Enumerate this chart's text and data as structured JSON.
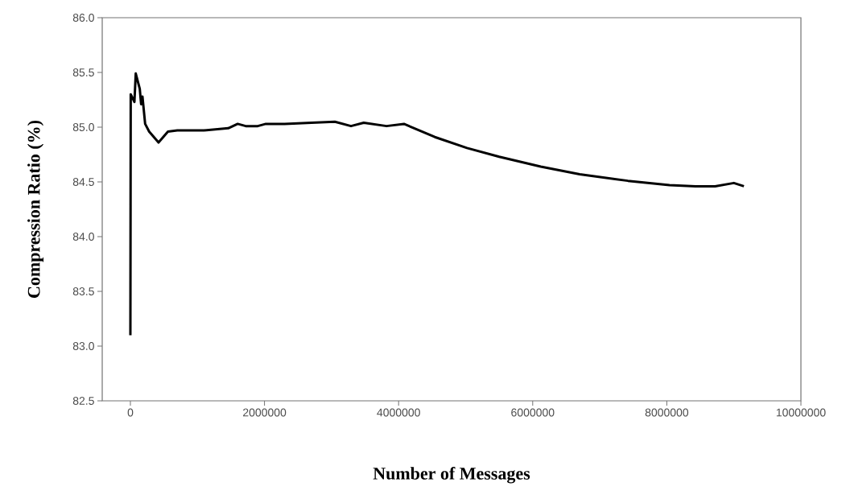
{
  "chart_data": {
    "type": "line",
    "xlabel": "Number of Messages",
    "ylabel": "Compression Ratio (%)",
    "xlim": [
      -420000,
      10000000
    ],
    "ylim": [
      82.5,
      86.0
    ],
    "xticks": [
      0,
      2000000,
      4000000,
      6000000,
      8000000,
      10000000
    ],
    "yticks": [
      {
        "value": 82.5,
        "label": "82.5"
      },
      {
        "value": 83.0,
        "label": "83.0"
      },
      {
        "value": 83.5,
        "label": "83.5"
      },
      {
        "value": 84.0,
        "label": "84.0"
      },
      {
        "value": 84.5,
        "label": "84.5"
      },
      {
        "value": 85.0,
        "label": "85.0"
      },
      {
        "value": 85.5,
        "label": "85.5"
      },
      {
        "value": 86.0,
        "label": "86.0"
      }
    ],
    "x": [
      0,
      5000,
      60000,
      80000,
      140000,
      160000,
      180000,
      220000,
      280000,
      420000,
      560000,
      700000,
      1100000,
      1460000,
      1600000,
      1720000,
      1900000,
      2020000,
      2300000,
      2700000,
      3050000,
      3290000,
      3480000,
      3820000,
      4080000,
      4540000,
      5020000,
      5500000,
      6120000,
      6700000,
      7420000,
      8040000,
      8430000,
      8720000,
      9000000,
      9150000
    ],
    "series": [
      {
        "color": "#000000",
        "values": [
          83.1,
          85.3,
          85.23,
          85.49,
          85.35,
          85.21,
          85.28,
          85.03,
          84.96,
          84.86,
          84.96,
          84.97,
          84.97,
          84.99,
          85.03,
          85.01,
          85.01,
          85.03,
          85.03,
          85.04,
          85.05,
          85.01,
          85.04,
          85.01,
          85.03,
          84.91,
          84.81,
          84.73,
          84.64,
          84.57,
          84.51,
          84.47,
          84.46,
          84.46,
          84.49,
          84.46
        ]
      }
    ]
  }
}
